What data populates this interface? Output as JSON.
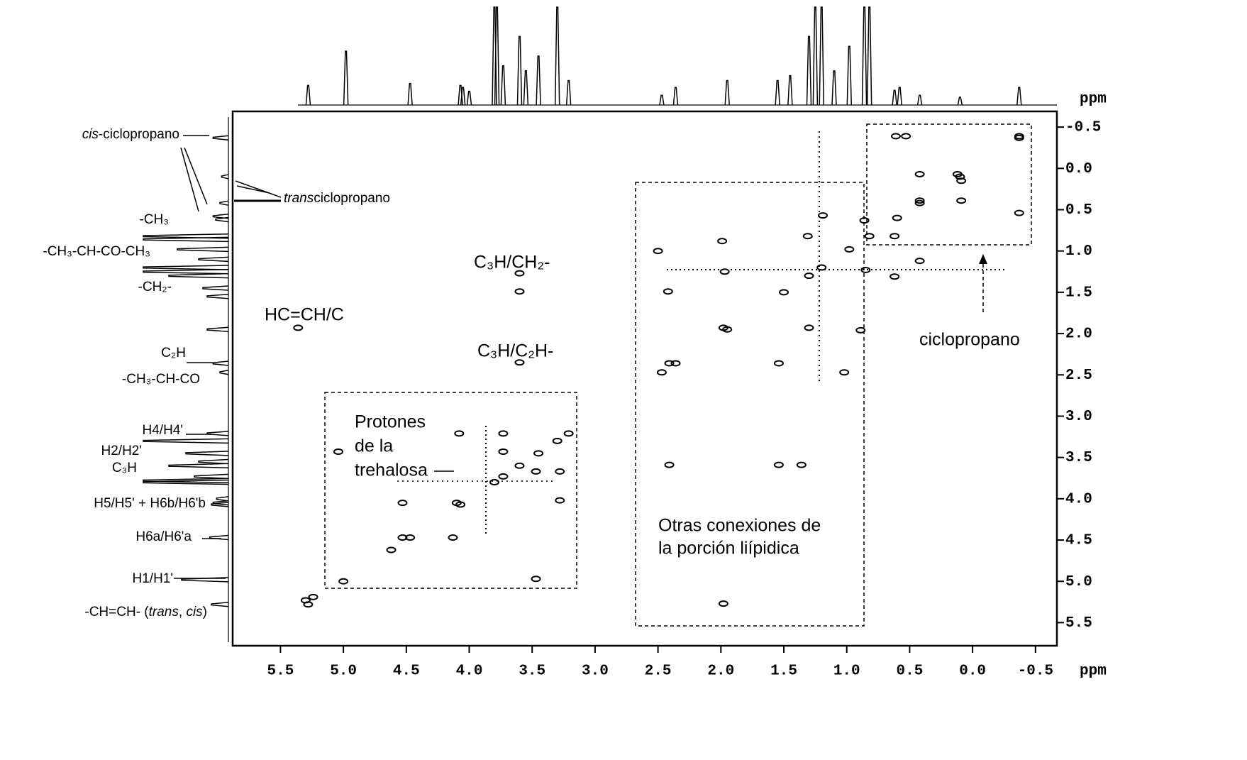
{
  "chart_data": {
    "type": "scatter",
    "xlabel": "ppm",
    "ylabel": "ppm",
    "xlim": [
      5.88,
      -0.67
    ],
    "ylim": [
      -0.69,
      5.78
    ],
    "xticks": [
      5.5,
      {
        "value": 5,
        "label": "5.0"
      },
      4.5,
      {
        "value": 4,
        "label": "4.0"
      },
      3.5,
      {
        "value": 3,
        "label": "3.0"
      },
      2.5,
      {
        "value": 2,
        "label": "2.0"
      },
      1.5,
      {
        "value": 1,
        "label": "1.0"
      },
      0.5,
      {
        "value": 0,
        "label": "0.0"
      },
      -0.5
    ],
    "yticks": [
      -0.5,
      {
        "value": 0,
        "label": "0.0"
      },
      0.5,
      {
        "value": 1,
        "label": "1.0"
      },
      1.5,
      {
        "value": 2,
        "label": "2.0"
      },
      2.5,
      {
        "value": 3,
        "label": "3.0"
      },
      3.5,
      {
        "value": 4,
        "label": "4.0"
      },
      4.5,
      {
        "value": 5,
        "label": "5.0"
      },
      5.5
    ],
    "x": [
      5.3,
      5.24,
      5.36,
      3.6,
      3.6,
      3.6,
      5.04,
      4.53,
      4.53,
      4.13,
      4.1,
      4.08,
      3.73,
      3.73,
      3.47,
      3.28,
      3.28,
      3.47,
      2.5,
      1.99,
      1.97,
      2.42,
      1.98,
      2.41,
      1.54,
      1.3,
      1.02,
      0.89,
      2.41,
      1.36,
      1.54,
      1.98,
      1.31,
      1.19,
      0.86,
      0.85,
      0.61,
      0.53,
      -0.37,
      0.42,
      0.12,
      0.09,
      0.42,
      0.09,
      -0.37,
      0.62,
      0.42,
      0.62,
      5.28,
      5.0,
      4.62,
      4.47,
      4.07,
      3.8,
      3.73,
      3.6,
      3.45,
      3.3,
      3.21,
      2.47,
      2.36,
      1.95,
      1.5,
      1.3,
      1.2,
      0.98,
      0.82,
      0.6,
      0.42,
      0.1,
      -0.37
    ],
    "y": [
      5.23,
      5.19,
      1.93,
      1.27,
      1.49,
      2.35,
      3.43,
      4.05,
      4.47,
      4.47,
      4.05,
      3.21,
      3.21,
      3.43,
      3.67,
      3.67,
      4.02,
      4.97,
      1.0,
      0.88,
      1.25,
      1.49,
      1.93,
      2.36,
      2.36,
      1.93,
      2.47,
      1.96,
      3.59,
      3.59,
      3.59,
      5.27,
      0.82,
      0.57,
      0.63,
      1.23,
      -0.39,
      -0.39,
      -0.39,
      0.07,
      0.07,
      0.15,
      0.39,
      0.39,
      0.54,
      0.82,
      1.12,
      1.31,
      5.28,
      5.0,
      4.62,
      4.47,
      4.07,
      3.8,
      3.73,
      3.6,
      3.45,
      3.3,
      3.21,
      2.47,
      2.36,
      1.95,
      1.5,
      1.3,
      1.2,
      0.98,
      0.82,
      0.6,
      0.42,
      0.1,
      -0.37
    ],
    "projection": {
      "ppm": [
        5.28,
        4.98,
        4.47,
        4.07,
        4.05,
        4.0,
        3.8,
        3.78,
        3.73,
        3.6,
        3.55,
        3.45,
        3.3,
        3.21,
        2.47,
        2.36,
        1.95,
        1.55,
        1.45,
        1.3,
        1.25,
        1.2,
        1.1,
        0.98,
        0.86,
        0.82,
        0.62,
        0.58,
        0.42,
        0.1,
        -0.37
      ],
      "intensity": [
        20,
        55,
        22,
        20,
        18,
        14,
        100,
        100,
        40,
        70,
        35,
        50,
        100,
        25,
        10,
        18,
        25,
        25,
        30,
        70,
        100,
        100,
        35,
        60,
        100,
        100,
        15,
        18,
        10,
        8,
        18
      ]
    },
    "annotations": [
      [
        "cis",
        "-ciclopropano"
      ],
      [
        "trans",
        "ciclopropano"
      ],
      [
        "-CH₃"
      ],
      [
        "-CH₃-CH-CO-CH₃"
      ],
      [
        "-CH₂-"
      ],
      [
        "C₂H"
      ],
      [
        "-CH₃-CH-CO"
      ],
      [
        "H4/H4'"
      ],
      [
        "H2/H2'"
      ],
      [
        "C₃H"
      ],
      [
        "H5/H5' + H6b/H6'b"
      ],
      [
        "H6a/H6'a"
      ],
      [
        "H1/H1'"
      ],
      [
        "-CH=CH- (",
        "trans",
        ", ",
        "cis",
        ")"
      ],
      [
        "HC=CH/C"
      ],
      [
        "C₃H/CH₂-"
      ],
      [
        "C₃H/C₂H-"
      ],
      [
        "Protones",
        "de la",
        "trehalosa"
      ],
      [
        "Otras conexiones de",
        "la porción liípidica"
      ],
      [
        "ciclopropano"
      ]
    ]
  }
}
